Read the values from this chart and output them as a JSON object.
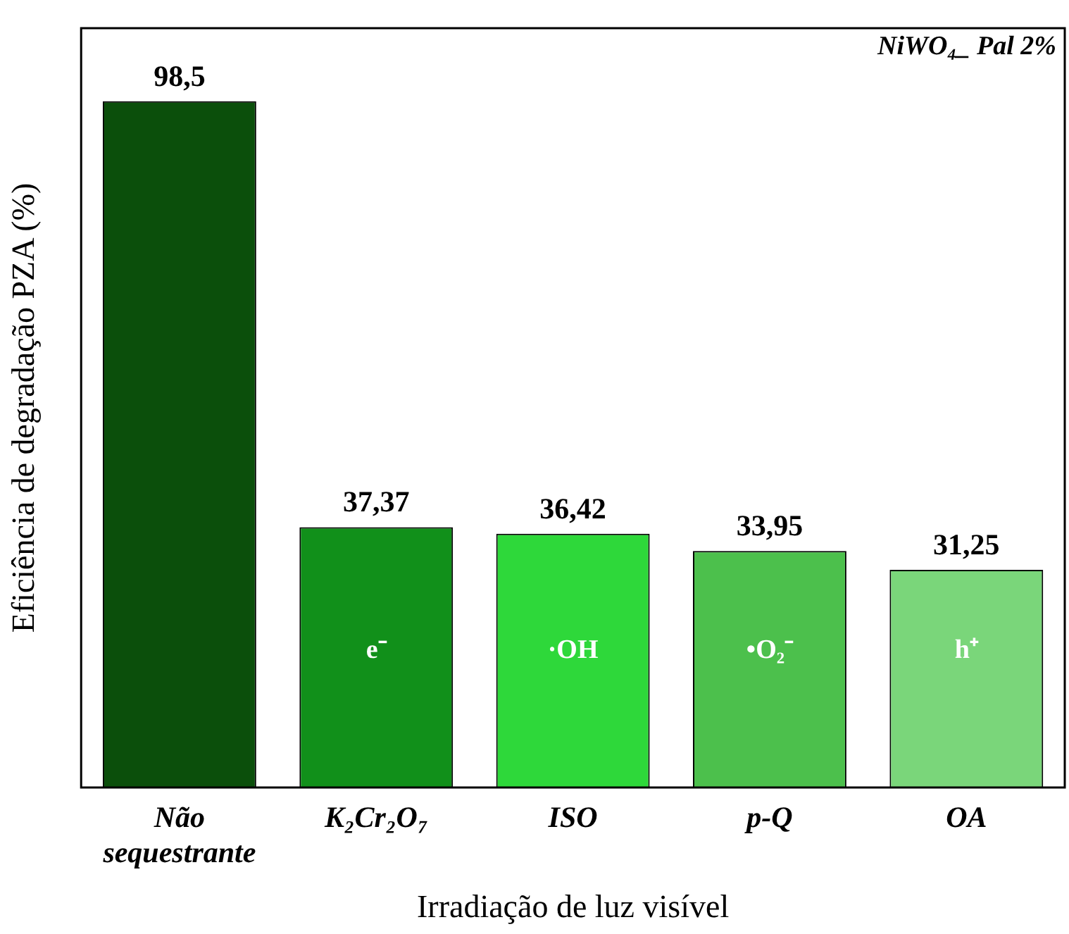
{
  "chart_data": {
    "type": "bar",
    "title": "NiWO₄_ Pal 2%",
    "xlabel": "Irradiação de luz visível",
    "ylabel": "Eficiência de degradação PZA (%)",
    "categories": [
      "Não sequestrante",
      "K₂Cr₂O₇",
      "ISO",
      "p-Q",
      "OA"
    ],
    "values": [
      98.5,
      37.37,
      36.42,
      33.95,
      31.25
    ],
    "colors": [
      "#0b4f0b",
      "#11901a",
      "#2ed83a",
      "#4cc04c",
      "#7ad67a"
    ],
    "value_labels": [
      "98,5",
      "37,37",
      "36,42",
      "33,95",
      "31,25"
    ],
    "ylim": [
      0,
      109
    ],
    "annotations": [
      "e⁻",
      "·OH",
      "•O₂⁻",
      "h⁺"
    ],
    "legend": false,
    "grid": false
  }
}
